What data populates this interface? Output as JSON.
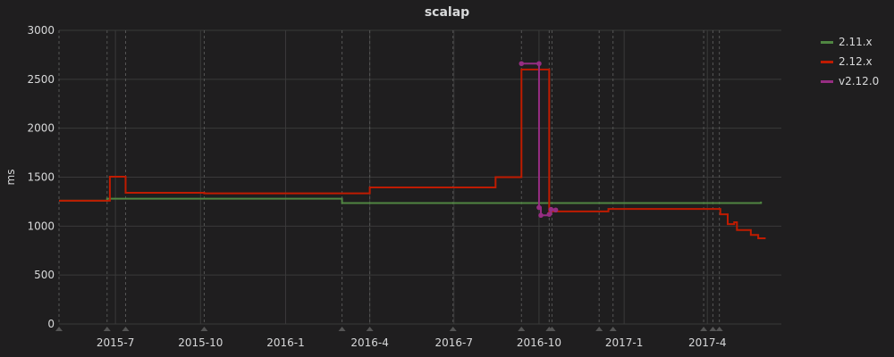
{
  "chart_data": {
    "type": "line",
    "title": "scalap",
    "ylabel": "ms",
    "xlabel": "",
    "ylim": [
      0,
      3000
    ],
    "xlim": [
      "2015-05-01",
      "2017-06-20"
    ],
    "y_ticks": [
      "0",
      "500",
      "1000",
      "1500",
      "2000",
      "2500",
      "3000"
    ],
    "x_ticks": [
      {
        "label": "2015-7",
        "date": "2015-07-01"
      },
      {
        "label": "2015-10",
        "date": "2015-10-01"
      },
      {
        "label": "2016-1",
        "date": "2016-01-01"
      },
      {
        "label": "2016-4",
        "date": "2016-04-01"
      },
      {
        "label": "2016-7",
        "date": "2016-07-01"
      },
      {
        "label": "2016-10",
        "date": "2016-10-01"
      },
      {
        "label": "2017-1",
        "date": "2017-01-01"
      },
      {
        "label": "2017-4",
        "date": "2017-04-01"
      }
    ],
    "grid": true,
    "legend_position": "top-right",
    "series": [
      {
        "name": "2.11.x",
        "color": "#508642",
        "step": true,
        "markers": false,
        "points": [
          [
            "2015-05-01",
            1260
          ],
          [
            "2015-06-22",
            1280
          ],
          [
            "2016-03-02",
            1235
          ],
          [
            "2017-05-29",
            1250
          ]
        ]
      },
      {
        "name": "2.12.x",
        "color": "#bf1b00",
        "step": true,
        "markers": false,
        "points": [
          [
            "2015-05-01",
            1260
          ],
          [
            "2015-06-25",
            1505
          ],
          [
            "2015-07-12",
            1340
          ],
          [
            "2015-10-05",
            1335
          ],
          [
            "2016-04-01",
            1395
          ],
          [
            "2016-08-15",
            1500
          ],
          [
            "2016-09-12",
            2600
          ],
          [
            "2016-10-12",
            1150
          ],
          [
            "2016-12-15",
            1175
          ],
          [
            "2017-04-15",
            1120
          ],
          [
            "2017-04-23",
            1020
          ],
          [
            "2017-04-30",
            1040
          ],
          [
            "2017-05-03",
            960
          ],
          [
            "2017-05-18",
            910
          ],
          [
            "2017-05-26",
            875
          ],
          [
            "2017-06-03",
            875
          ]
        ]
      },
      {
        "name": "v2.12.0",
        "color": "#962d82",
        "step": true,
        "markers": true,
        "points": [
          [
            "2016-09-12",
            2660
          ],
          [
            "2016-10-01",
            2660
          ],
          [
            "2016-10-01",
            1190
          ],
          [
            "2016-10-03",
            1110
          ],
          [
            "2016-10-12",
            1120
          ],
          [
            "2016-10-14",
            1170
          ],
          [
            "2016-10-19",
            1165
          ]
        ]
      }
    ],
    "annotation_dates": [
      "2015-05-01",
      "2015-06-22",
      "2015-07-12",
      "2015-10-05",
      "2016-03-02",
      "2016-04-01",
      "2016-06-30",
      "2016-09-12",
      "2016-10-12",
      "2016-10-15",
      "2016-12-05",
      "2016-12-20",
      "2017-03-28",
      "2017-04-07",
      "2017-04-14"
    ],
    "colors": {
      "grid": "#3a3a3a",
      "text": "#d8d9da",
      "background": "#1f1e1f",
      "annotation": "#555555"
    }
  }
}
